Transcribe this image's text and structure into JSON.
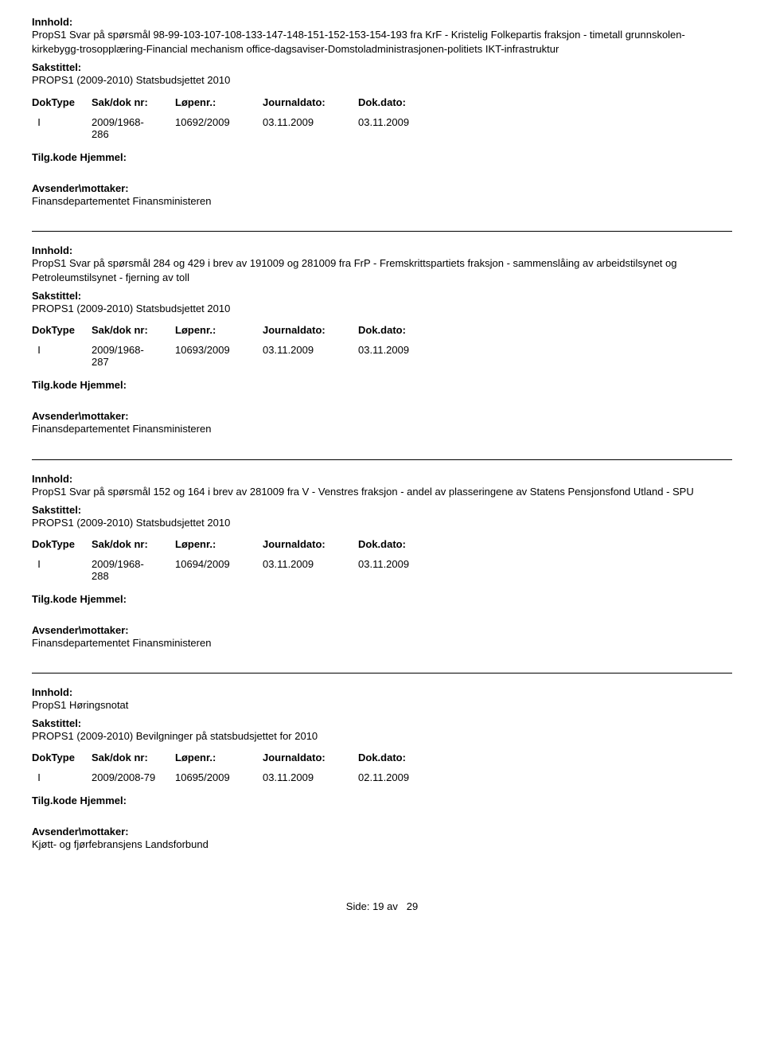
{
  "labels": {
    "innhold": "Innhold:",
    "sakstittel": "Sakstittel:",
    "doktype": "DokType",
    "sakdoknr": "Sak/dok nr:",
    "lopenr": "Løpenr.:",
    "journaldato": "Journaldato:",
    "dokdato": "Dok.dato:",
    "tilgkode": "Tilg.kode",
    "hjemmel": "Hjemmel:",
    "avsender": "Avsender\\mottaker:"
  },
  "records": [
    {
      "innhold": "PropS1 Svar på spørsmål 98-99-103-107-108-133-147-148-151-152-153-154-193 fra KrF - Kristelig Folkepartis fraksjon - timetall grunnskolen-kirkebygg-trosopplæring-Financial mechanism office-dagsaviser-Domstoladministrasjonen-politiets IKT-infrastruktur",
      "sakstittel": "PROPS1 (2009-2010) Statsbudsjettet 2010",
      "doktype": "I",
      "sakdoknr_line1": "2009/1968-",
      "sakdoknr_line2": "286",
      "lopenr": "10692/2009",
      "journaldato": "03.11.2009",
      "dokdato": "03.11.2009",
      "avsender": "Finansdepartementet Finansministeren"
    },
    {
      "innhold": "PropS1 Svar på spørsmål 284 og 429 i brev av 191009 og 281009 fra FrP - Fremskrittspartiets fraksjon - sammenslåing av arbeidstilsynet og Petroleumstilsynet - fjerning av toll",
      "sakstittel": "PROPS1 (2009-2010) Statsbudsjettet 2010",
      "doktype": "I",
      "sakdoknr_line1": "2009/1968-",
      "sakdoknr_line2": "287",
      "lopenr": "10693/2009",
      "journaldato": "03.11.2009",
      "dokdato": "03.11.2009",
      "avsender": "Finansdepartementet Finansministeren"
    },
    {
      "innhold": "PropS1 Svar på spørsmål 152 og 164 i brev av 281009 fra V - Venstres fraksjon - andel av plasseringene av Statens Pensjonsfond Utland - SPU",
      "sakstittel": "PROPS1 (2009-2010) Statsbudsjettet 2010",
      "doktype": "I",
      "sakdoknr_line1": "2009/1968-",
      "sakdoknr_line2": "288",
      "lopenr": "10694/2009",
      "journaldato": "03.11.2009",
      "dokdato": "03.11.2009",
      "avsender": "Finansdepartementet Finansministeren"
    },
    {
      "innhold": "PropS1 Høringsnotat",
      "sakstittel": "PROPS1 (2009-2010) Bevilgninger på statsbudsjettet for 2010",
      "doktype": "I",
      "sakdoknr_line1": "2009/2008-79",
      "sakdoknr_line2": "",
      "lopenr": "10695/2009",
      "journaldato": "03.11.2009",
      "dokdato": "02.11.2009",
      "avsender": "Kjøtt- og fjørfebransjens Landsforbund"
    }
  ],
  "footer": {
    "side_label": "Side:",
    "page_current": "19",
    "page_of": "av",
    "page_total": "29"
  }
}
